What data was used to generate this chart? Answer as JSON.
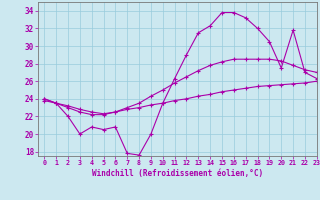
{
  "xlabel": "Windchill (Refroidissement éolien,°C)",
  "ylim": [
    17.5,
    35
  ],
  "xlim": [
    -0.5,
    23
  ],
  "yticks": [
    18,
    20,
    22,
    24,
    26,
    28,
    30,
    32,
    34
  ],
  "xticks": [
    0,
    1,
    2,
    3,
    4,
    5,
    6,
    7,
    8,
    9,
    10,
    11,
    12,
    13,
    14,
    15,
    16,
    17,
    18,
    19,
    20,
    21,
    22,
    23
  ],
  "bg_color": "#cce8f0",
  "grid_color": "#99ccdd",
  "line_color": "#aa00aa",
  "line1_y": [
    23.8,
    23.5,
    22.0,
    20.0,
    20.8,
    20.5,
    20.8,
    17.8,
    17.6,
    20.0,
    23.5,
    26.3,
    29.0,
    31.5,
    32.3,
    33.8,
    33.8,
    33.2,
    32.0,
    30.5,
    27.5,
    31.8,
    27.0,
    26.3
  ],
  "line2_y": [
    24.0,
    23.5,
    23.0,
    22.5,
    22.2,
    22.2,
    22.5,
    23.0,
    23.5,
    24.3,
    25.0,
    25.8,
    26.5,
    27.2,
    27.8,
    28.2,
    28.5,
    28.5,
    28.5,
    28.5,
    28.3,
    27.8,
    27.3,
    27.0
  ],
  "line3_y": [
    24.0,
    23.5,
    23.2,
    22.8,
    22.5,
    22.3,
    22.5,
    22.8,
    23.0,
    23.3,
    23.5,
    23.8,
    24.0,
    24.3,
    24.5,
    24.8,
    25.0,
    25.2,
    25.4,
    25.5,
    25.6,
    25.7,
    25.8,
    26.0
  ]
}
